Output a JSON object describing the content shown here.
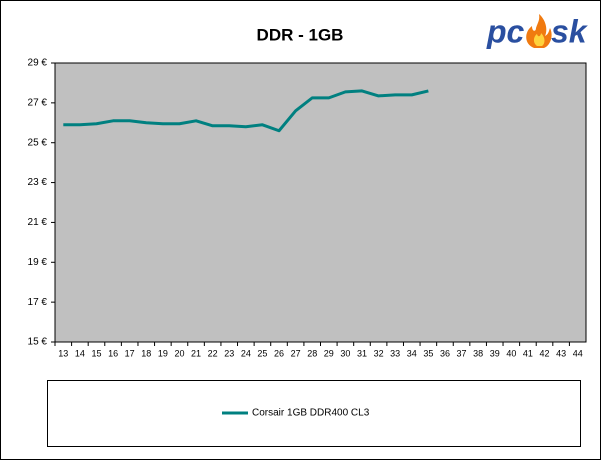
{
  "chart_data": {
    "type": "line",
    "title": "DDR - 1GB",
    "logo": [
      "pc",
      "sk"
    ],
    "categories": [
      "13",
      "14",
      "15",
      "16",
      "17",
      "18",
      "19",
      "20",
      "21",
      "22",
      "23",
      "24",
      "25",
      "26",
      "27",
      "28",
      "29",
      "30",
      "31",
      "32",
      "33",
      "34",
      "35",
      "36",
      "37",
      "38",
      "39",
      "40",
      "41",
      "42",
      "43",
      "44"
    ],
    "series": [
      {
        "name": "Corsair 1GB DDR400 CL3",
        "color": "#008080",
        "values": [
          25.9,
          25.9,
          25.95,
          26.1,
          26.1,
          26.0,
          25.95,
          25.95,
          26.1,
          25.85,
          25.85,
          25.8,
          25.9,
          25.6,
          26.6,
          27.25,
          27.25,
          27.55,
          27.6,
          27.35,
          27.4,
          27.4,
          27.6,
          null,
          null,
          null,
          null,
          null,
          null,
          null,
          null,
          null
        ]
      }
    ],
    "ylim": [
      15,
      29
    ],
    "yticks": [
      {
        "value": 15,
        "label": "15 €"
      },
      {
        "value": 17,
        "label": "17 €"
      },
      {
        "value": 19,
        "label": "19 €"
      },
      {
        "value": 21,
        "label": "21 €"
      },
      {
        "value": 23,
        "label": "23 €"
      },
      {
        "value": 25,
        "label": "25 €"
      },
      {
        "value": 27,
        "label": "27 €"
      },
      {
        "value": 29,
        "label": "29 €"
      }
    ],
    "grid": false,
    "legend": "bottom",
    "plot_background": "#c0c0c0"
  }
}
